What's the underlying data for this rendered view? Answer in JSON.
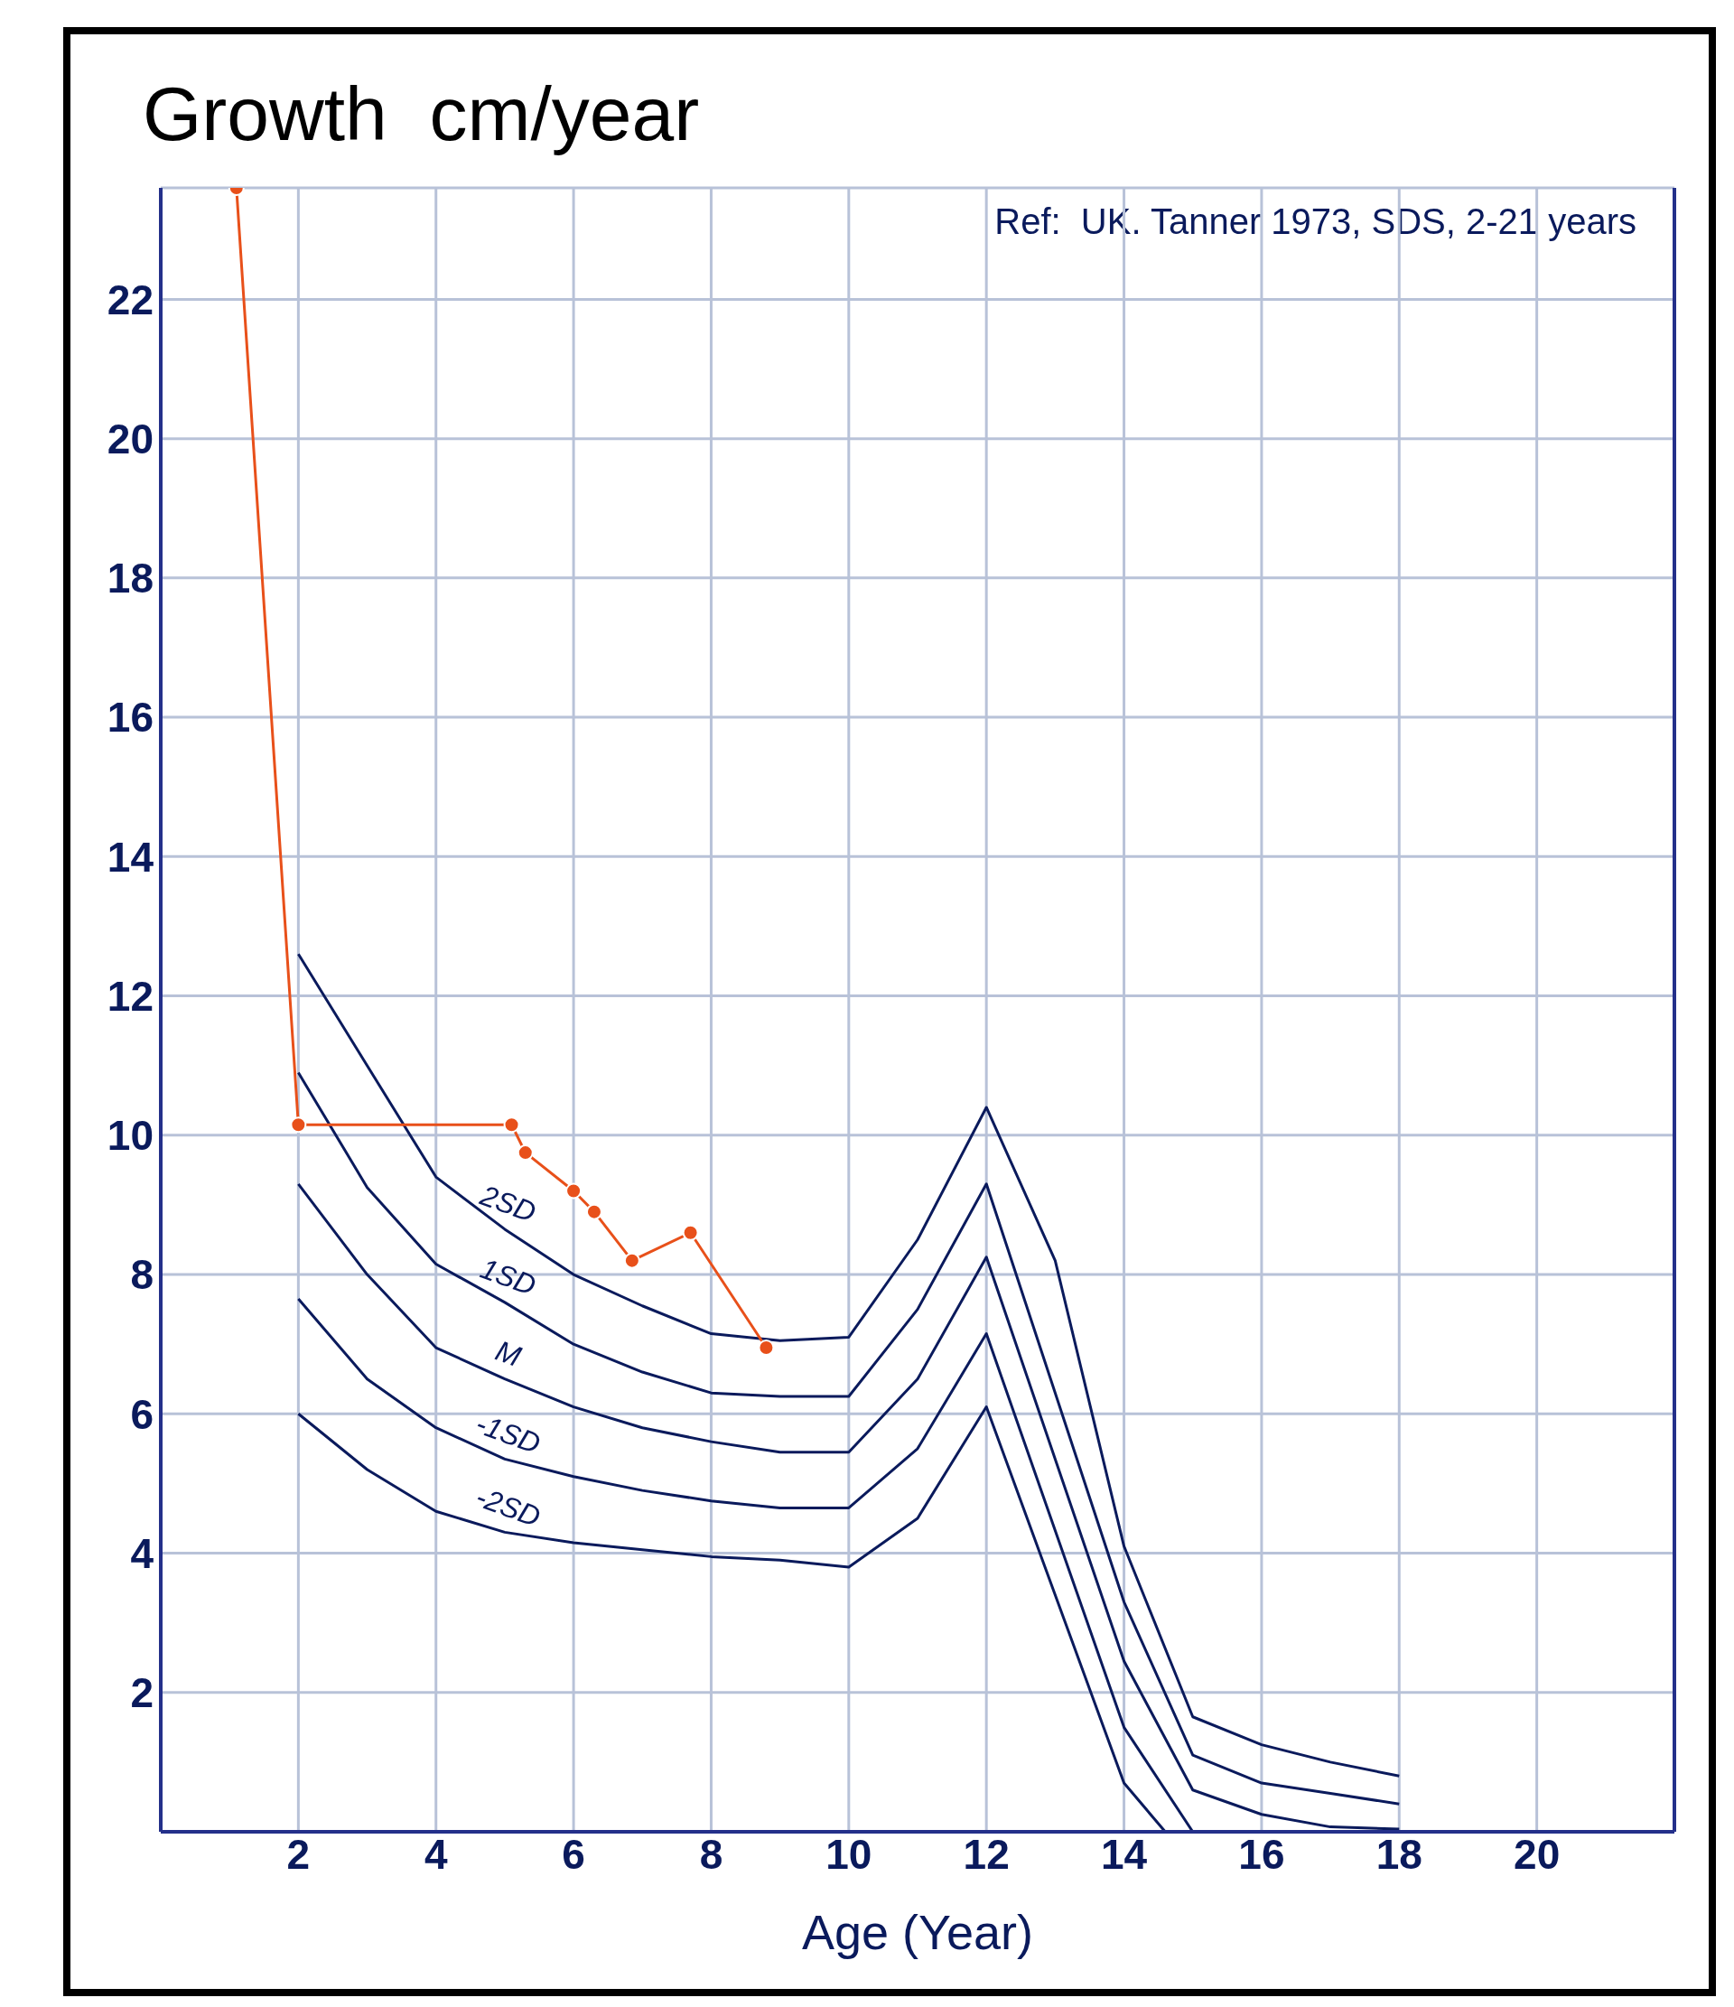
{
  "chart_data": {
    "type": "line",
    "title": "Growth  cm/year",
    "xlabel": "Age (Year)",
    "annotations": [
      "Ref:  UK. Tanner 1973, SDS, 2-21 years"
    ],
    "xlim": [
      0,
      22
    ],
    "xticks": [
      2,
      4,
      6,
      8,
      10,
      12,
      14,
      16,
      18,
      20
    ],
    "ylim": [
      0,
      23.6
    ],
    "yticks": [
      2,
      4,
      6,
      8,
      10,
      12,
      14,
      16,
      18,
      20,
      22
    ],
    "grid": true,
    "legend": false,
    "marker": "none",
    "line_style": "solid",
    "series": [
      {
        "name": "2SD",
        "color": "#0a1a5c",
        "x": [
          2,
          3,
          4,
          5,
          6,
          7,
          8,
          9,
          10,
          11,
          12,
          13,
          14,
          15,
          16,
          17,
          18
        ],
        "values": [
          12.6,
          11.0,
          9.4,
          8.65,
          8.0,
          7.55,
          7.15,
          7.05,
          7.1,
          8.5,
          10.4,
          8.2,
          4.1,
          1.65,
          1.25,
          1.0,
          0.8
        ]
      },
      {
        "name": "1SD",
        "color": "#0a1a5c",
        "x": [
          2,
          3,
          4,
          5,
          6,
          7,
          8,
          9,
          10,
          11,
          12,
          14,
          15,
          16,
          17,
          18
        ],
        "values": [
          10.9,
          9.25,
          8.15,
          7.6,
          7.0,
          6.6,
          6.3,
          6.25,
          6.25,
          7.5,
          9.3,
          3.3,
          1.1,
          0.7,
          0.55,
          0.4
        ]
      },
      {
        "name": "M",
        "color": "#0a1a5c",
        "x": [
          2,
          3,
          4,
          5,
          6,
          7,
          8,
          9,
          10,
          11,
          12,
          14,
          15,
          16,
          17,
          18
        ],
        "values": [
          9.3,
          8.0,
          6.95,
          6.5,
          6.1,
          5.8,
          5.6,
          5.45,
          5.45,
          6.5,
          8.25,
          2.45,
          0.6,
          0.25,
          0.07,
          0.04
        ]
      },
      {
        "name": "-1SD",
        "color": "#0a1a5c",
        "x": [
          2,
          3,
          4,
          5,
          6,
          7,
          8,
          9,
          10,
          11,
          12,
          14,
          15
        ],
        "values": [
          7.65,
          6.5,
          5.8,
          5.35,
          5.1,
          4.9,
          4.75,
          4.65,
          4.65,
          5.5,
          7.15,
          1.5,
          0
        ]
      },
      {
        "name": "-2SD",
        "color": "#0a1a5c",
        "x": [
          2,
          3,
          4,
          5,
          6,
          7,
          8,
          9,
          10,
          11,
          12,
          14,
          14.6
        ],
        "values": [
          6.0,
          5.2,
          4.6,
          4.3,
          4.15,
          4.05,
          3.95,
          3.9,
          3.8,
          4.5,
          6.1,
          0.7,
          0
        ]
      },
      {
        "color": "#e8501a",
        "marker": "circle",
        "x": [
          1.1,
          2,
          5.1,
          5.3,
          6.0,
          6.3,
          6.85,
          7.7,
          8.8
        ],
        "values": [
          23.6,
          10.15,
          10.15,
          9.75,
          9.2,
          8.9,
          8.2,
          8.6,
          6.95
        ]
      }
    ]
  }
}
